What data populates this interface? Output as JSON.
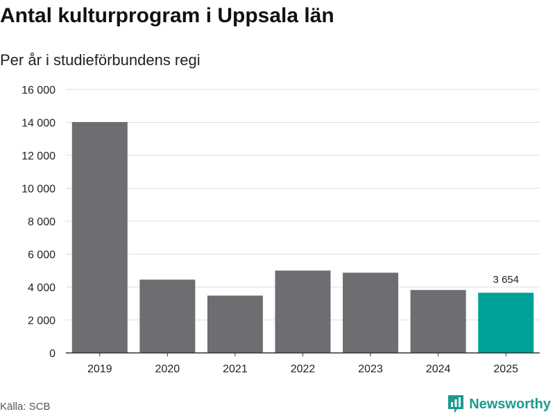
{
  "title": "Antal kulturprogram i Uppsala län",
  "subtitle": "Per år i studieförbundens regi",
  "source": "Källa: SCB",
  "brand": {
    "name": "Newsworthy",
    "icon": "newsworthy-logo-icon"
  },
  "colors": {
    "bar": "#6e6d72",
    "highlight": "#00a19a",
    "grid": "#dddddd",
    "axis": "#333333",
    "text": "#222222",
    "brand": "#1a9b8e"
  },
  "chart_data": {
    "type": "bar",
    "categories": [
      "2019",
      "2020",
      "2021",
      "2022",
      "2023",
      "2024",
      "2025"
    ],
    "values": [
      14020,
      4450,
      3480,
      5000,
      4870,
      3820,
      3654
    ],
    "highlight_index": 6,
    "data_labels": [
      {
        "index": 6,
        "text": "3 654"
      }
    ],
    "yticks": [
      0,
      2000,
      4000,
      6000,
      8000,
      10000,
      12000,
      14000,
      16000
    ],
    "ytick_labels": [
      "0",
      "2 000",
      "4 000",
      "6 000",
      "8 000",
      "10 000",
      "12 000",
      "14 000",
      "16 000"
    ],
    "ylim": [
      0,
      16000
    ],
    "xlabel": "",
    "ylabel": "",
    "grid": true
  }
}
